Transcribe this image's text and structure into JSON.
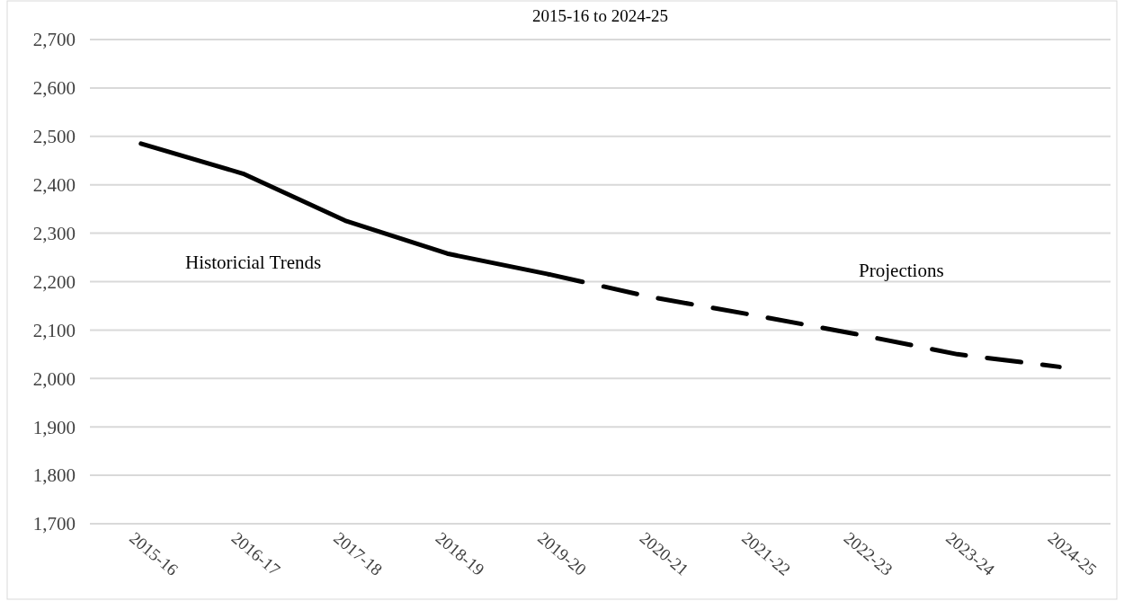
{
  "chart_data": {
    "type": "line",
    "title": "2015-16 to 2024-25",
    "categories": [
      "2015-16",
      "2016-17",
      "2017-18",
      "2018-19",
      "2019-20",
      "2020-21",
      "2021-22",
      "2022-23",
      "2023-24",
      "2024-25"
    ],
    "series": [
      {
        "name": "Historicial Trends",
        "color": "#000000",
        "values": [
          2485,
          2423,
          2326,
          2258,
          2215,
          null,
          null,
          null,
          null,
          null
        ]
      },
      {
        "name": "Projections",
        "color": "#000000",
        "line_style": "dashed",
        "values": [
          null,
          null,
          null,
          null,
          2215,
          2168,
          2131,
          2092,
          2050,
          2024
        ]
      }
    ],
    "ylim": [
      1700,
      2700
    ],
    "yticks": [
      {
        "value": 1700,
        "label": "1,700"
      },
      {
        "value": 1800,
        "label": "1,800"
      },
      {
        "value": 1900,
        "label": "1,900"
      },
      {
        "value": 2000,
        "label": "2,000"
      },
      {
        "value": 2100,
        "label": "2,100"
      },
      {
        "value": 2200,
        "label": "2,200"
      },
      {
        "value": 2300,
        "label": "2,300"
      },
      {
        "value": 2400,
        "label": "2,400"
      },
      {
        "value": 2500,
        "label": "2,500"
      },
      {
        "value": 2600,
        "label": "2,600"
      },
      {
        "value": 2700,
        "label": "2,700"
      }
    ],
    "grid": "y",
    "marker": "none"
  }
}
